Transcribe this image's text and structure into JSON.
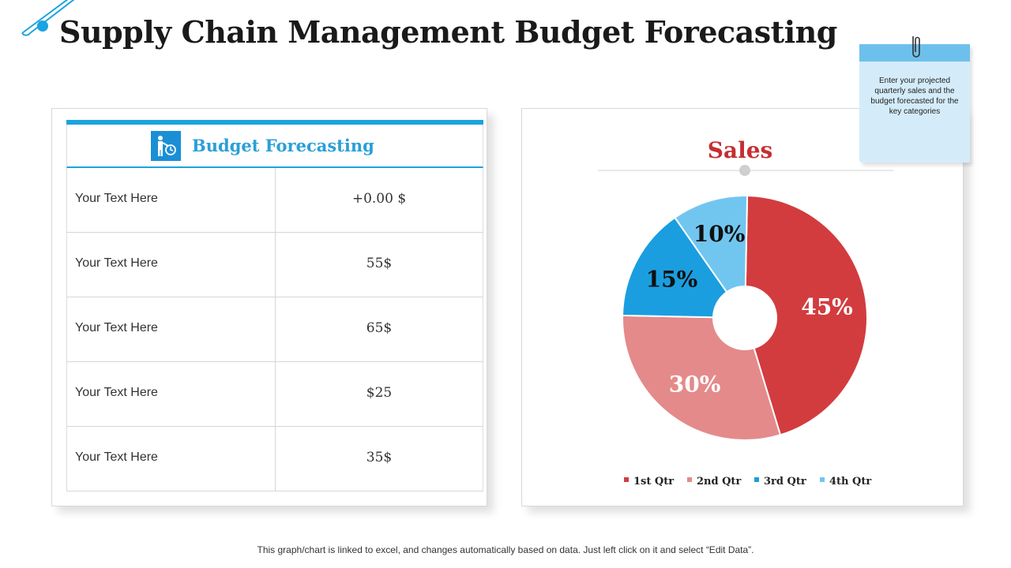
{
  "page": {
    "title": "Supply Chain Management Budget Forecasting",
    "footer": "This graph/chart is linked to excel, and changes automatically based on data. Just left click on it and select “Edit Data”."
  },
  "table": {
    "title": "Budget Forecasting",
    "icon": "person-clock-icon",
    "rows": [
      {
        "label": "Your Text Here",
        "value": "+0.00 $"
      },
      {
        "label": "Your Text Here",
        "value": "55$"
      },
      {
        "label": "Your Text Here",
        "value": "65$"
      },
      {
        "label": "Your Text Here",
        "value": "$25"
      },
      {
        "label": "Your Text Here",
        "value": "35$"
      }
    ]
  },
  "note": {
    "text": "Enter your projected quarterly sales and the budget forecasted for the key categories"
  },
  "colors": {
    "accent": "#1ba3e0",
    "q1": "#d23c3f",
    "q2": "#e48a8a",
    "q3": "#1a9ee0",
    "q4": "#71c6f0",
    "title_red": "#c62e33"
  },
  "chart_data": {
    "type": "pie",
    "title": "Sales",
    "categories": [
      "1st Qtr",
      "2nd Qtr",
      "3rd Qtr",
      "4th Qtr"
    ],
    "values": [
      45,
      30,
      15,
      10
    ],
    "labels": [
      "45%",
      "30%",
      "15%",
      "10%"
    ],
    "legend_position": "bottom",
    "donut": true
  }
}
